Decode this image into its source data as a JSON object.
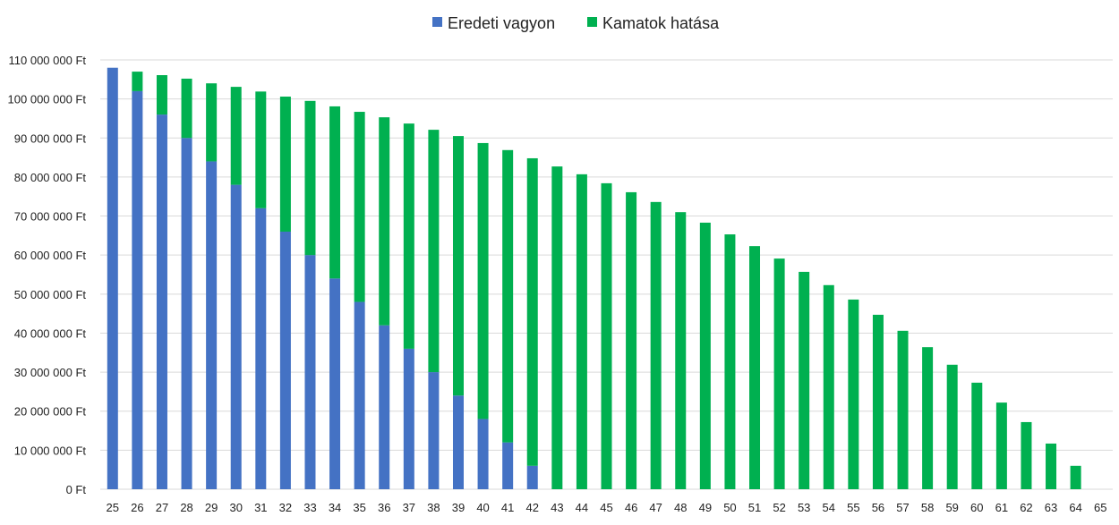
{
  "chart_data": {
    "type": "bar",
    "stacked": true,
    "title": "",
    "xlabel": "",
    "ylabel": "",
    "ylim": [
      0,
      110000000
    ],
    "y_tick_step": 10000000,
    "y_tick_suffix": " Ft",
    "grid": true,
    "legend_position": "top",
    "categories": [
      25,
      26,
      27,
      28,
      29,
      30,
      31,
      32,
      33,
      34,
      35,
      36,
      37,
      38,
      39,
      40,
      41,
      42,
      43,
      44,
      45,
      46,
      47,
      48,
      49,
      50,
      51,
      52,
      53,
      54,
      55,
      56,
      57,
      58,
      59,
      60,
      61,
      62,
      63,
      64,
      65
    ],
    "series": [
      {
        "name": "Eredeti vagyon",
        "color": "#4472C4",
        "values": [
          108000000,
          102000000,
          96000000,
          90000000,
          84000000,
          78000000,
          72000000,
          66000000,
          60000000,
          54000000,
          48000000,
          42000000,
          36000000,
          30000000,
          24000000,
          18000000,
          12000000,
          6000000,
          0,
          0,
          0,
          0,
          0,
          0,
          0,
          0,
          0,
          0,
          0,
          0,
          0,
          0,
          0,
          0,
          0,
          0,
          0,
          0,
          0,
          0,
          0
        ]
      },
      {
        "name": "Kamatok hatása",
        "color": "#00B050",
        "values": [
          0,
          5000000,
          10100000,
          15200000,
          20000000,
          25100000,
          29900000,
          34600000,
          39500000,
          44100000,
          48700000,
          53300000,
          57700000,
          62100000,
          66500000,
          70700000,
          74900000,
          78800000,
          82700000,
          80700000,
          78400000,
          76100000,
          73600000,
          71000000,
          68300000,
          65300000,
          62300000,
          59100000,
          55700000,
          52300000,
          48600000,
          44700000,
          40600000,
          36400000,
          31900000,
          27300000,
          22200000,
          17200000,
          11700000,
          6000000,
          0
        ]
      }
    ]
  }
}
